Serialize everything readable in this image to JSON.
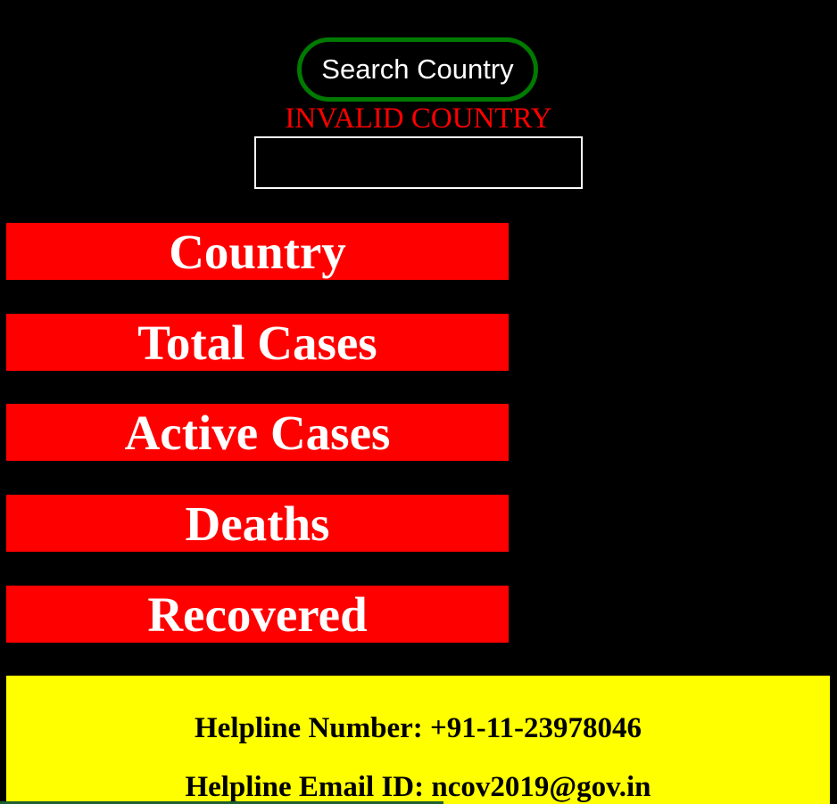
{
  "search": {
    "button_label": "Search Country",
    "error_message": "INVALID COUNTRY",
    "input_value": "",
    "input_placeholder": ""
  },
  "stats": {
    "country_label": "Country",
    "total_cases_label": "Total Cases",
    "active_cases_label": "Active Cases",
    "deaths_label": "Deaths",
    "recovered_label": "Recovered"
  },
  "footer": {
    "helpline_number": "Helpline Number: +91-11-23978046",
    "helpline_email": "Helpline Email ID: ncov2019@gov.in"
  },
  "colors": {
    "background": "#000000",
    "stat_box": "#ff0000",
    "error_text": "#ff0000",
    "button_border": "#007a00",
    "footer_background": "#ffff00"
  }
}
